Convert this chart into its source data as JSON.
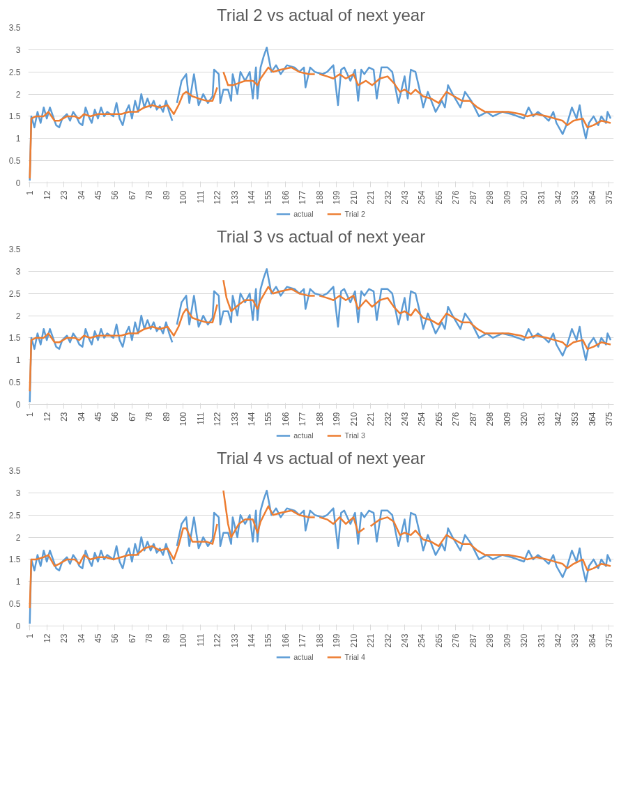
{
  "chart_data": [
    {
      "type": "line",
      "title": "Trial 2 vs actual of next year",
      "xlim": [
        0,
        378
      ],
      "xticks": [
        1,
        12,
        23,
        34,
        45,
        56,
        67,
        78,
        89,
        100,
        111,
        122,
        133,
        144,
        155,
        166,
        177,
        188,
        199,
        210,
        221,
        232,
        243,
        254,
        265,
        276,
        287,
        298,
        309,
        320,
        331,
        342,
        353,
        364,
        375
      ],
      "ylim": [
        0,
        3.5
      ],
      "yticks": [
        0,
        0.5,
        1,
        1.5,
        2,
        2.5,
        3,
        3.5
      ],
      "grid": "y",
      "legend": "bottom",
      "series": [
        {
          "name": "actual",
          "color": "#5b9bd5",
          "x": [
            1,
            2,
            4,
            6,
            8,
            10,
            12,
            14,
            16,
            18,
            20,
            22,
            25,
            27,
            29,
            31,
            33,
            35,
            37,
            39,
            41,
            43,
            45,
            47,
            49,
            51,
            53,
            55,
            57,
            59,
            61,
            63,
            65,
            67,
            69,
            71,
            73,
            75,
            77,
            79,
            81,
            83,
            85,
            87,
            89,
            91,
            93,
            94,
            96,
            99,
            102,
            104,
            107,
            110,
            113,
            116,
            119,
            120,
            123,
            124,
            126,
            129,
            131,
            132,
            135,
            137,
            140,
            143,
            145,
            147,
            148,
            150,
            152,
            154,
            157,
            160,
            163,
            167,
            172,
            175,
            178,
            179,
            182,
            185,
            190,
            193,
            197,
            200,
            202,
            204,
            208,
            211,
            213,
            215,
            217,
            220,
            223,
            225,
            228,
            232,
            235,
            239,
            243,
            245,
            247,
            250,
            253,
            255,
            258,
            263,
            267,
            269,
            271,
            274,
            279,
            282,
            286,
            291,
            296,
            300,
            306,
            312,
            320,
            323,
            326,
            329,
            333,
            336,
            339,
            341,
            345,
            348,
            351,
            354,
            356,
            358,
            360,
            362,
            365,
            368,
            370,
            373,
            374,
            376
          ],
          "values": [
            0.05,
            1.5,
            1.25,
            1.6,
            1.35,
            1.7,
            1.45,
            1.7,
            1.5,
            1.3,
            1.25,
            1.45,
            1.55,
            1.4,
            1.6,
            1.5,
            1.35,
            1.3,
            1.7,
            1.5,
            1.35,
            1.65,
            1.45,
            1.7,
            1.5,
            1.6,
            1.55,
            1.5,
            1.8,
            1.45,
            1.3,
            1.6,
            1.75,
            1.45,
            1.85,
            1.6,
            2.0,
            1.7,
            1.9,
            1.7,
            1.85,
            1.65,
            1.75,
            1.6,
            1.85,
            1.6,
            1.4,
            null,
            1.8,
            2.3,
            2.45,
            1.8,
            2.45,
            1.75,
            2.0,
            1.8,
            1.95,
            2.55,
            2.45,
            1.8,
            2.1,
            2.1,
            1.85,
            2.45,
            2.0,
            2.5,
            2.3,
            2.5,
            1.9,
            2.6,
            1.9,
            2.6,
            2.85,
            3.05,
            2.5,
            2.65,
            2.45,
            2.65,
            2.6,
            2.5,
            2.6,
            2.15,
            2.6,
            2.5,
            2.45,
            2.5,
            2.65,
            1.75,
            2.55,
            2.6,
            2.3,
            2.55,
            1.85,
            2.55,
            2.45,
            2.6,
            2.55,
            1.9,
            2.6,
            2.6,
            2.5,
            1.8,
            2.4,
            1.9,
            2.55,
            2.5,
            2.05,
            1.7,
            2.05,
            1.6,
            1.85,
            1.7,
            2.2,
            2.0,
            1.7,
            2.05,
            1.85,
            1.5,
            1.6,
            1.5,
            1.6,
            1.55,
            1.45,
            1.7,
            1.5,
            1.6,
            1.5,
            1.4,
            1.6,
            1.35,
            1.1,
            1.35,
            1.7,
            1.45,
            1.75,
            1.3,
            1.0,
            1.35,
            1.5,
            1.3,
            1.5,
            1.35,
            1.6,
            1.45
          ]
        },
        {
          "name": "Trial 2",
          "color": "#ed7d31",
          "x": [
            1,
            2,
            5,
            10,
            13,
            17,
            20,
            25,
            30,
            33,
            36,
            40,
            45,
            50,
            55,
            60,
            65,
            70,
            75,
            80,
            85,
            90,
            94,
            97,
            100,
            102,
            106,
            110,
            115,
            119,
            122,
            123,
            126,
            129,
            132,
            136,
            140,
            145,
            148,
            150,
            155,
            158,
            163,
            170,
            175,
            181,
            185,
            186,
            188,
            193,
            197,
            201,
            205,
            210,
            213,
            218,
            222,
            227,
            232,
            236,
            240,
            243,
            247,
            250,
            255,
            260,
            265,
            270,
            275,
            280,
            285,
            290,
            295,
            302,
            310,
            318,
            322,
            328,
            335,
            340,
            345,
            348,
            352,
            358,
            361,
            365,
            370,
            376
          ],
          "values": [
            0.1,
            1.45,
            1.5,
            1.5,
            1.6,
            1.4,
            1.4,
            1.5,
            1.5,
            1.45,
            1.55,
            1.5,
            1.55,
            1.55,
            1.55,
            1.55,
            1.6,
            1.6,
            1.7,
            1.75,
            1.7,
            1.75,
            1.55,
            1.75,
            2.0,
            2.05,
            1.95,
            1.9,
            1.85,
            1.85,
            2.15,
            null,
            2.5,
            2.2,
            2.2,
            2.25,
            2.3,
            2.3,
            2.2,
            2.35,
            2.6,
            2.5,
            2.55,
            2.6,
            2.5,
            2.45,
            2.45,
            null,
            2.45,
            2.4,
            2.35,
            2.45,
            2.35,
            2.45,
            2.2,
            2.3,
            2.2,
            2.35,
            2.4,
            2.25,
            2.05,
            2.1,
            2.0,
            2.1,
            1.95,
            1.9,
            1.8,
            2.05,
            1.95,
            1.85,
            1.85,
            1.7,
            1.6,
            1.6,
            1.6,
            1.55,
            1.5,
            1.55,
            1.5,
            1.45,
            1.4,
            1.3,
            1.4,
            1.45,
            1.25,
            1.3,
            1.4,
            1.35
          ]
        }
      ]
    },
    {
      "type": "line",
      "title": "Trial 3 vs actual of next year",
      "xlim": [
        0,
        378
      ],
      "xticks": [
        1,
        12,
        23,
        34,
        45,
        56,
        67,
        78,
        89,
        100,
        111,
        122,
        133,
        144,
        155,
        166,
        177,
        188,
        199,
        210,
        221,
        232,
        243,
        254,
        265,
        276,
        287,
        298,
        309,
        320,
        331,
        342,
        353,
        364,
        375
      ],
      "ylim": [
        0,
        3.5
      ],
      "yticks": [
        0,
        0.5,
        1,
        1.5,
        2,
        2.5,
        3,
        3.5
      ],
      "grid": "y",
      "legend": "bottom",
      "series": [
        {
          "name": "actual",
          "color": "#5b9bd5",
          "x": [
            1,
            2,
            4,
            6,
            8,
            10,
            12,
            14,
            16,
            18,
            20,
            22,
            25,
            27,
            29,
            31,
            33,
            35,
            37,
            39,
            41,
            43,
            45,
            47,
            49,
            51,
            53,
            55,
            57,
            59,
            61,
            63,
            65,
            67,
            69,
            71,
            73,
            75,
            77,
            79,
            81,
            83,
            85,
            87,
            89,
            91,
            93,
            94,
            96,
            99,
            102,
            104,
            107,
            110,
            113,
            116,
            119,
            120,
            123,
            124,
            126,
            129,
            131,
            132,
            135,
            137,
            140,
            143,
            145,
            147,
            148,
            150,
            152,
            154,
            157,
            160,
            163,
            167,
            172,
            175,
            178,
            179,
            182,
            185,
            190,
            193,
            197,
            200,
            202,
            204,
            208,
            211,
            213,
            215,
            217,
            220,
            223,
            225,
            228,
            232,
            235,
            239,
            243,
            245,
            247,
            250,
            253,
            255,
            258,
            263,
            267,
            269,
            271,
            274,
            279,
            282,
            286,
            291,
            296,
            300,
            306,
            312,
            320,
            323,
            326,
            329,
            333,
            336,
            339,
            341,
            345,
            348,
            351,
            354,
            356,
            358,
            360,
            362,
            365,
            368,
            370,
            373,
            374,
            376
          ],
          "values": [
            0.05,
            1.5,
            1.25,
            1.6,
            1.35,
            1.7,
            1.45,
            1.7,
            1.5,
            1.3,
            1.25,
            1.45,
            1.55,
            1.4,
            1.6,
            1.5,
            1.35,
            1.3,
            1.7,
            1.5,
            1.35,
            1.65,
            1.45,
            1.7,
            1.5,
            1.6,
            1.55,
            1.5,
            1.8,
            1.45,
            1.3,
            1.6,
            1.75,
            1.45,
            1.85,
            1.6,
            2.0,
            1.7,
            1.9,
            1.7,
            1.85,
            1.65,
            1.75,
            1.6,
            1.85,
            1.6,
            1.4,
            null,
            1.8,
            2.3,
            2.45,
            1.8,
            2.45,
            1.75,
            2.0,
            1.8,
            1.95,
            2.55,
            2.45,
            1.8,
            2.1,
            2.1,
            1.85,
            2.45,
            2.0,
            2.5,
            2.3,
            2.5,
            1.9,
            2.6,
            1.9,
            2.6,
            2.85,
            3.05,
            2.5,
            2.65,
            2.45,
            2.65,
            2.6,
            2.5,
            2.6,
            2.15,
            2.6,
            2.5,
            2.45,
            2.5,
            2.65,
            1.75,
            2.55,
            2.6,
            2.3,
            2.55,
            1.85,
            2.55,
            2.45,
            2.6,
            2.55,
            1.9,
            2.6,
            2.6,
            2.5,
            1.8,
            2.4,
            1.9,
            2.55,
            2.5,
            2.05,
            1.7,
            2.05,
            1.6,
            1.85,
            1.7,
            2.2,
            2.0,
            1.7,
            2.05,
            1.85,
            1.5,
            1.6,
            1.5,
            1.6,
            1.55,
            1.45,
            1.7,
            1.5,
            1.6,
            1.5,
            1.4,
            1.6,
            1.35,
            1.1,
            1.35,
            1.7,
            1.45,
            1.75,
            1.3,
            1.0,
            1.35,
            1.5,
            1.3,
            1.5,
            1.35,
            1.6,
            1.45
          ]
        },
        {
          "name": "Trial 3",
          "color": "#ed7d31",
          "x": [
            1,
            2,
            5,
            10,
            13,
            17,
            20,
            25,
            30,
            33,
            36,
            40,
            45,
            50,
            55,
            60,
            65,
            70,
            75,
            80,
            85,
            90,
            94,
            97,
            100,
            102,
            106,
            110,
            115,
            119,
            122,
            123,
            126,
            128,
            131,
            136,
            140,
            145,
            148,
            150,
            155,
            158,
            163,
            170,
            175,
            181,
            185,
            186,
            188,
            193,
            197,
            201,
            205,
            210,
            213,
            218,
            222,
            227,
            232,
            236,
            240,
            243,
            247,
            250,
            255,
            260,
            265,
            270,
            275,
            280,
            285,
            290,
            295,
            302,
            310,
            318,
            322,
            328,
            335,
            340,
            345,
            348,
            352,
            358,
            361,
            365,
            370,
            376
          ],
          "values": [
            0.3,
            1.45,
            1.5,
            1.5,
            1.6,
            1.4,
            1.4,
            1.5,
            1.5,
            1.45,
            1.55,
            1.5,
            1.55,
            1.55,
            1.55,
            1.55,
            1.6,
            1.6,
            1.7,
            1.75,
            1.7,
            1.75,
            1.55,
            1.75,
            2.05,
            2.15,
            1.95,
            1.9,
            1.85,
            1.85,
            2.25,
            null,
            2.8,
            2.4,
            2.1,
            2.25,
            2.35,
            2.35,
            2.15,
            2.35,
            2.65,
            2.5,
            2.55,
            2.6,
            2.5,
            2.45,
            2.45,
            null,
            2.45,
            2.4,
            2.35,
            2.45,
            2.35,
            2.45,
            2.15,
            2.35,
            2.2,
            2.35,
            2.4,
            2.2,
            2.05,
            2.1,
            2.0,
            2.15,
            1.95,
            1.9,
            1.8,
            2.05,
            1.95,
            1.85,
            1.85,
            1.7,
            1.6,
            1.6,
            1.6,
            1.55,
            1.5,
            1.55,
            1.5,
            1.45,
            1.4,
            1.3,
            1.4,
            1.45,
            1.25,
            1.3,
            1.4,
            1.35
          ]
        }
      ]
    },
    {
      "type": "line",
      "title": "Trial 4 vs actual of next year",
      "xlim": [
        0,
        378
      ],
      "xticks": [
        1,
        12,
        23,
        34,
        45,
        56,
        67,
        78,
        89,
        100,
        111,
        122,
        133,
        144,
        155,
        166,
        177,
        188,
        199,
        210,
        221,
        232,
        243,
        254,
        265,
        276,
        287,
        298,
        309,
        320,
        331,
        342,
        353,
        364,
        375
      ],
      "ylim": [
        0,
        3.5
      ],
      "yticks": [
        0,
        0.5,
        1,
        1.5,
        2,
        2.5,
        3,
        3.5
      ],
      "grid": "y",
      "legend": "bottom",
      "series": [
        {
          "name": "actual",
          "color": "#5b9bd5",
          "x": [
            1,
            2,
            4,
            6,
            8,
            10,
            12,
            14,
            16,
            18,
            20,
            22,
            25,
            27,
            29,
            31,
            33,
            35,
            37,
            39,
            41,
            43,
            45,
            47,
            49,
            51,
            53,
            55,
            57,
            59,
            61,
            63,
            65,
            67,
            69,
            71,
            73,
            75,
            77,
            79,
            81,
            83,
            85,
            87,
            89,
            91,
            93,
            94,
            96,
            99,
            102,
            104,
            107,
            110,
            113,
            116,
            119,
            120,
            123,
            124,
            126,
            129,
            131,
            132,
            135,
            137,
            140,
            143,
            145,
            147,
            148,
            150,
            152,
            154,
            157,
            160,
            163,
            167,
            172,
            175,
            178,
            179,
            182,
            185,
            190,
            193,
            197,
            200,
            202,
            204,
            208,
            211,
            213,
            215,
            217,
            220,
            223,
            225,
            228,
            232,
            235,
            239,
            243,
            245,
            247,
            250,
            253,
            255,
            258,
            263,
            267,
            269,
            271,
            274,
            279,
            282,
            286,
            291,
            296,
            300,
            306,
            312,
            320,
            323,
            326,
            329,
            333,
            336,
            339,
            341,
            345,
            348,
            351,
            354,
            356,
            358,
            360,
            362,
            365,
            368,
            370,
            373,
            374,
            376
          ],
          "values": [
            0.05,
            1.5,
            1.25,
            1.6,
            1.35,
            1.7,
            1.45,
            1.7,
            1.5,
            1.3,
            1.25,
            1.45,
            1.55,
            1.4,
            1.6,
            1.5,
            1.35,
            1.3,
            1.7,
            1.5,
            1.35,
            1.65,
            1.45,
            1.7,
            1.5,
            1.6,
            1.55,
            1.5,
            1.8,
            1.45,
            1.3,
            1.6,
            1.75,
            1.45,
            1.85,
            1.6,
            2.0,
            1.7,
            1.9,
            1.7,
            1.85,
            1.65,
            1.75,
            1.6,
            1.85,
            1.6,
            1.4,
            null,
            1.8,
            2.3,
            2.45,
            1.8,
            2.45,
            1.75,
            2.0,
            1.8,
            1.95,
            2.55,
            2.45,
            1.8,
            2.1,
            2.1,
            1.85,
            2.45,
            2.0,
            2.5,
            2.3,
            2.5,
            1.9,
            2.6,
            1.9,
            2.6,
            2.85,
            3.05,
            2.5,
            2.65,
            2.45,
            2.65,
            2.6,
            2.5,
            2.6,
            2.15,
            2.6,
            2.5,
            2.45,
            2.5,
            2.65,
            1.75,
            2.55,
            2.6,
            2.3,
            2.55,
            1.85,
            2.55,
            2.45,
            2.6,
            2.55,
            1.9,
            2.6,
            2.6,
            2.5,
            1.8,
            2.4,
            1.9,
            2.55,
            2.5,
            2.05,
            1.7,
            2.05,
            1.6,
            1.85,
            1.7,
            2.2,
            2.0,
            1.7,
            2.05,
            1.85,
            1.5,
            1.6,
            1.5,
            1.6,
            1.55,
            1.45,
            1.7,
            1.5,
            1.6,
            1.5,
            1.4,
            1.6,
            1.35,
            1.1,
            1.35,
            1.7,
            1.45,
            1.75,
            1.3,
            1.0,
            1.35,
            1.5,
            1.3,
            1.5,
            1.35,
            1.6,
            1.45
          ]
        },
        {
          "name": "Trial 4",
          "color": "#ed7d31",
          "x": [
            1,
            2,
            5,
            10,
            13,
            17,
            20,
            25,
            30,
            33,
            36,
            40,
            45,
            50,
            55,
            60,
            65,
            70,
            75,
            80,
            85,
            90,
            94,
            97,
            100,
            102,
            106,
            110,
            115,
            119,
            122,
            123,
            126,
            129,
            131,
            136,
            140,
            145,
            148,
            150,
            155,
            158,
            163,
            170,
            175,
            181,
            185,
            186,
            188,
            193,
            197,
            201,
            205,
            210,
            213,
            217,
            219,
            221,
            227,
            232,
            236,
            240,
            243,
            247,
            250,
            255,
            260,
            265,
            270,
            275,
            280,
            285,
            290,
            295,
            302,
            310,
            318,
            322,
            328,
            335,
            340,
            345,
            348,
            352,
            358,
            361,
            365,
            370,
            376
          ],
          "values": [
            0.4,
            1.5,
            1.5,
            1.55,
            1.6,
            1.35,
            1.4,
            1.5,
            1.5,
            1.4,
            1.6,
            1.5,
            1.55,
            1.55,
            1.5,
            1.55,
            1.6,
            1.6,
            1.75,
            1.8,
            1.7,
            1.75,
            1.5,
            1.8,
            2.2,
            2.2,
            1.9,
            1.9,
            1.9,
            1.85,
            2.3,
            null,
            3.05,
            2.3,
            2.0,
            2.3,
            2.4,
            2.4,
            2.1,
            2.35,
            2.7,
            2.5,
            2.55,
            2.6,
            2.5,
            2.45,
            2.45,
            null,
            2.45,
            2.4,
            2.3,
            2.45,
            2.3,
            2.45,
            2.1,
            2.2,
            null,
            2.25,
            2.4,
            2.45,
            2.35,
            2.05,
            2.1,
            2.05,
            2.15,
            1.95,
            1.9,
            1.8,
            2.05,
            1.95,
            1.85,
            1.85,
            1.7,
            1.6,
            1.6,
            1.6,
            1.55,
            1.5,
            1.55,
            1.5,
            1.45,
            1.4,
            1.3,
            1.4,
            1.5,
            1.25,
            1.3,
            1.4,
            1.35
          ]
        }
      ]
    }
  ]
}
